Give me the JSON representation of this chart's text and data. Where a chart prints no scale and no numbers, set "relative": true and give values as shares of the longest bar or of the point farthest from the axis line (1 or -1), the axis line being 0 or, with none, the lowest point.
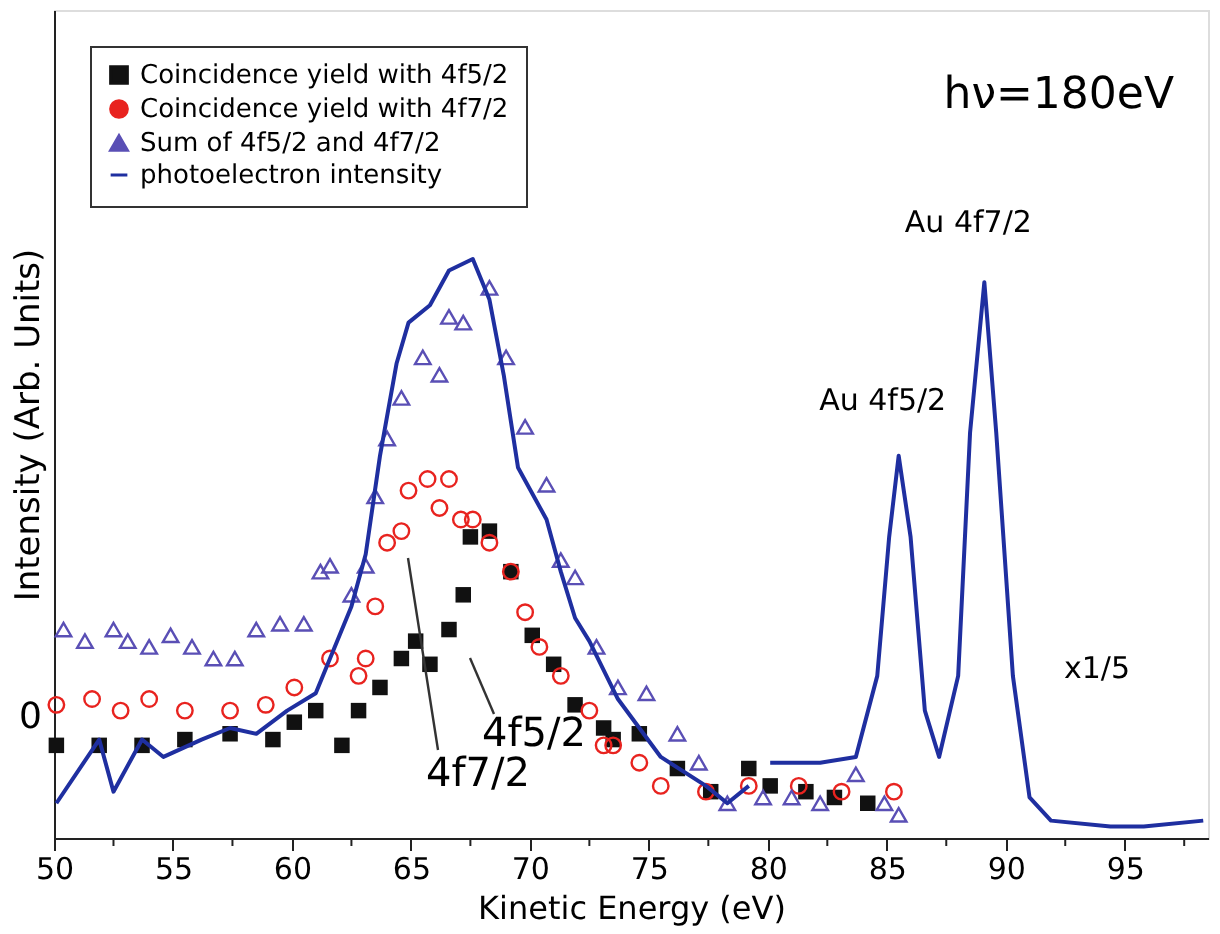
{
  "chart_data": {
    "type": "scatter",
    "xlabel": "Kinetic Energy (eV)",
    "ylabel": "Intensity (Arb. Units)",
    "relative": true,
    "xlim": [
      50,
      98.5
    ],
    "xticks": [
      50,
      {
        "value": 52.5,
        "label": null
      },
      55,
      {
        "value": 57.5,
        "label": null
      },
      60,
      {
        "value": 62.5,
        "label": null
      },
      65,
      {
        "value": 67.5,
        "label": null
      },
      70,
      {
        "value": 72.5,
        "label": null
      },
      75,
      {
        "value": 77.5,
        "label": null
      },
      80,
      {
        "value": 82.5,
        "label": null
      },
      85,
      {
        "value": 87.5,
        "label": null
      },
      90,
      {
        "value": 92.5,
        "label": null
      },
      95,
      {
        "value": 97.5,
        "label": null
      }
    ],
    "grid": false,
    "legend": "top left",
    "series": [
      {
        "name": "Coincidence yield with 4f5/2",
        "color": "#111111",
        "marker": "square",
        "x": [
          50.1,
          51.9,
          53.7,
          55.5,
          57.4,
          59.2,
          60.1,
          61.0,
          62.1,
          62.8,
          63.7,
          64.6,
          65.2,
          65.8,
          66.6,
          67.2,
          67.5,
          68.3,
          69.2,
          70.1,
          71.0,
          71.9,
          73.1,
          73.5,
          74.6,
          76.2,
          77.6,
          79.2,
          80.1,
          81.6,
          82.8,
          84.2
        ],
        "values": [
          0.16,
          0.16,
          0.16,
          0.17,
          0.18,
          0.17,
          0.2,
          0.22,
          0.16,
          0.22,
          0.26,
          0.31,
          0.34,
          0.3,
          0.36,
          0.42,
          0.52,
          0.53,
          0.46,
          0.35,
          0.3,
          0.23,
          0.19,
          0.17,
          0.18,
          0.12,
          0.08,
          0.12,
          0.09,
          0.08,
          0.07,
          0.06
        ]
      },
      {
        "name": "Coincidence yield with 4f7/2",
        "color": "#e8231f",
        "marker": "circle",
        "x": [
          50.1,
          51.6,
          52.8,
          54.0,
          55.5,
          57.4,
          58.9,
          60.1,
          61.6,
          62.8,
          63.1,
          63.5,
          64.0,
          64.6,
          64.9,
          65.7,
          66.2,
          66.6,
          67.1,
          67.6,
          68.3,
          69.2,
          69.8,
          70.4,
          71.3,
          72.5,
          73.1,
          73.5,
          74.6,
          75.5,
          77.4,
          79.2,
          81.3,
          83.1,
          85.3
        ],
        "values": [
          0.23,
          0.24,
          0.22,
          0.24,
          0.22,
          0.22,
          0.23,
          0.26,
          0.31,
          0.28,
          0.31,
          0.4,
          0.51,
          0.53,
          0.6,
          0.62,
          0.57,
          0.62,
          0.55,
          0.55,
          0.51,
          0.46,
          0.39,
          0.33,
          0.28,
          0.22,
          0.16,
          0.16,
          0.13,
          0.09,
          0.08,
          0.09,
          0.09,
          0.08,
          0.08
        ]
      },
      {
        "name": "Sum of 4f5/2 and 4f7/2",
        "color": "#5a4fb5",
        "marker": "triangle",
        "x": [
          50.4,
          51.3,
          52.5,
          53.1,
          54.0,
          54.9,
          55.8,
          56.7,
          57.6,
          58.5,
          59.5,
          60.5,
          61.2,
          61.6,
          62.5,
          63.1,
          63.5,
          64.0,
          64.6,
          65.5,
          66.2,
          66.6,
          67.2,
          68.3,
          69.0,
          69.8,
          70.7,
          71.3,
          71.9,
          72.8,
          73.7,
          74.9,
          76.2,
          77.1,
          78.3,
          79.8,
          81.0,
          82.2,
          83.7,
          84.9,
          85.5
        ],
        "values": [
          0.36,
          0.34,
          0.36,
          0.34,
          0.33,
          0.35,
          0.33,
          0.31,
          0.31,
          0.36,
          0.37,
          0.37,
          0.46,
          0.47,
          0.42,
          0.47,
          0.59,
          0.69,
          0.76,
          0.83,
          0.8,
          0.9,
          0.89,
          0.95,
          0.83,
          0.71,
          0.61,
          0.48,
          0.45,
          0.33,
          0.26,
          0.25,
          0.18,
          0.13,
          0.06,
          0.07,
          0.07,
          0.06,
          0.11,
          0.06,
          0.04
        ]
      },
      {
        "name": "photoelectron intensity",
        "type": "line",
        "color": "#1f2fa0",
        "marker": "none",
        "x": [
          50.1,
          51.9,
          52.5,
          53.7,
          54.6,
          56.2,
          57.4,
          58.5,
          59.8,
          61.0,
          61.6,
          62.5,
          63.1,
          63.7,
          64.4,
          64.9,
          65.8,
          66.6,
          67.6,
          68.3,
          68.9,
          69.5,
          70.7,
          71.3,
          71.9,
          72.5,
          73.7,
          75.5,
          77.4,
          78.3,
          79.2,
          79.6,
          80.1,
          82.2,
          83.7,
          84.6,
          85.1,
          85.5,
          86.0,
          86.6,
          87.2,
          88.0,
          88.5,
          89.1,
          89.6,
          90.3,
          91.0,
          91.9,
          94.4,
          95.8,
          98.3
        ],
        "values": [
          0.06,
          0.17,
          0.08,
          0.17,
          0.14,
          0.17,
          0.19,
          0.18,
          0.22,
          0.25,
          0.31,
          0.4,
          0.49,
          0.66,
          0.82,
          0.89,
          0.92,
          0.98,
          1.0,
          0.93,
          0.8,
          0.64,
          0.55,
          0.46,
          0.38,
          0.34,
          0.24,
          0.14,
          0.09,
          0.06,
          0.09,
          null,
          0.13,
          0.13,
          0.14,
          0.28,
          0.52,
          0.66,
          0.52,
          0.22,
          0.14,
          0.28,
          0.7,
          0.96,
          0.7,
          0.28,
          0.07,
          0.03,
          0.02,
          0.02,
          0.03
        ]
      }
    ],
    "annotations": [
      "hν=180eV",
      {
        "text": "Au 4f5/2",
        "x": 85.5,
        "y": 0.66
      },
      {
        "text": "Au 4f7/2",
        "x": 89.1,
        "y": 0.96
      },
      "x1/5",
      "4f7/2",
      "4f5/2",
      "0"
    ]
  }
}
